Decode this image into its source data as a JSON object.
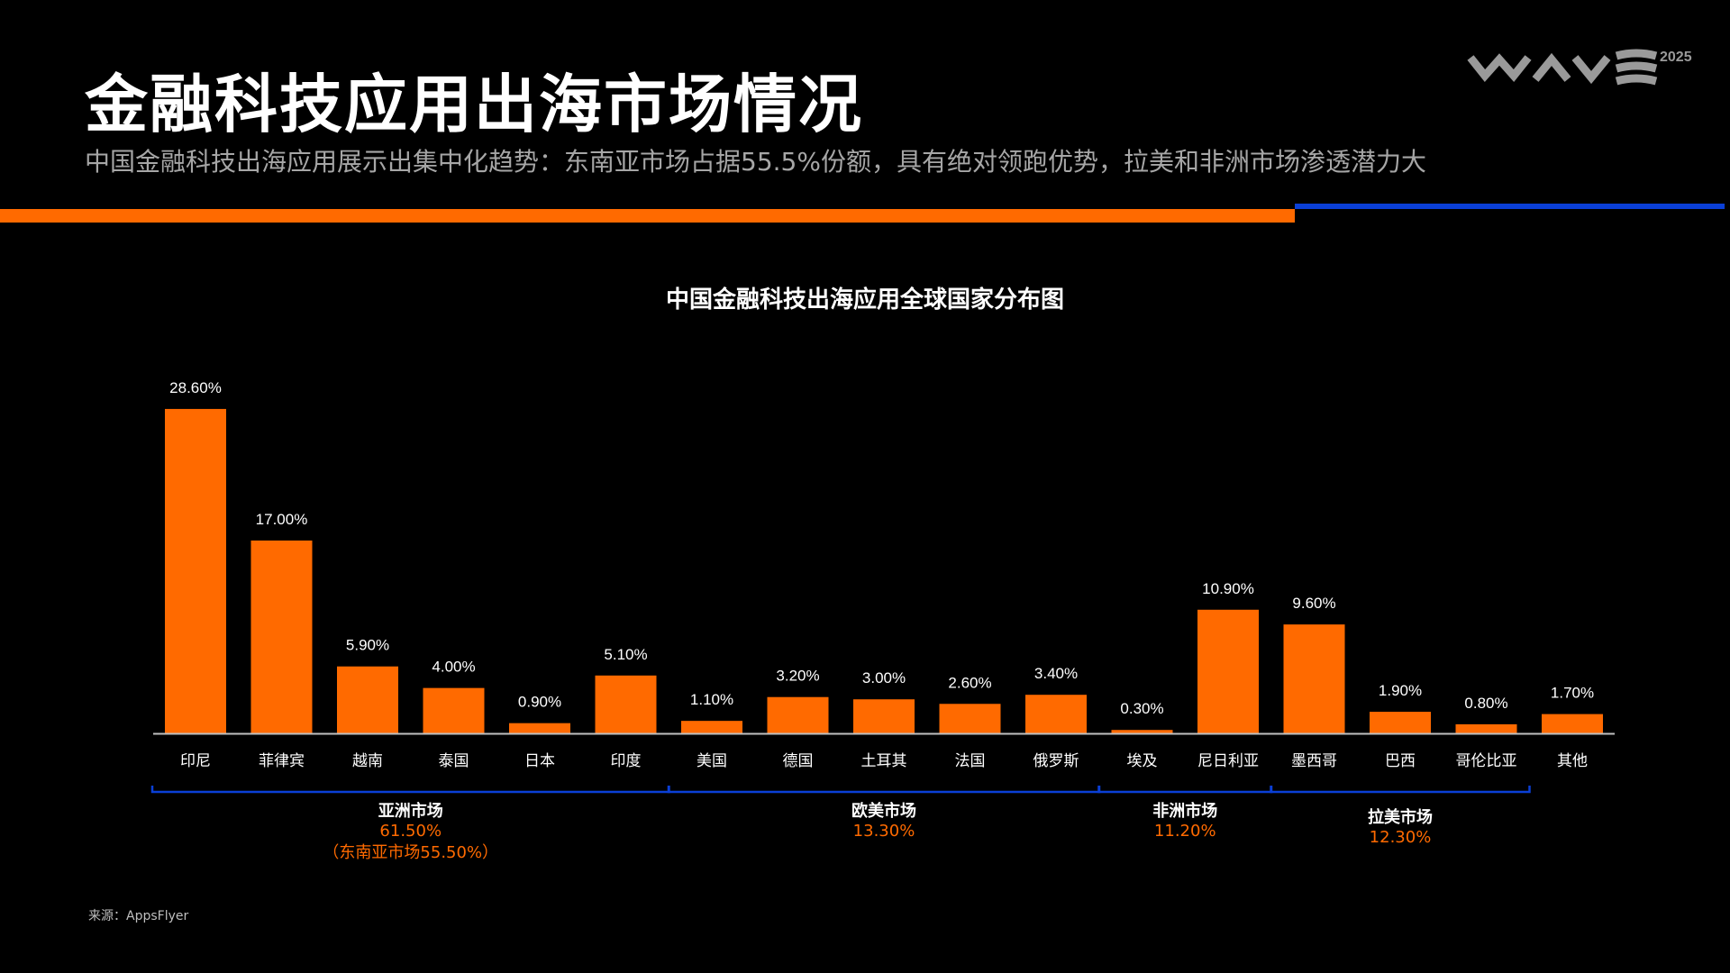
{
  "header": {
    "title": "金融科技应用出海市场情况",
    "subtitle": "中国金融科技出海应用展示出集中化趋势：东南亚市场占据55.5%份额，具有绝对领跑优势，拉美和非洲市场渗透潜力大",
    "logo_text": "WAVE",
    "logo_year": "2025"
  },
  "colors": {
    "bar": "#ff6a00",
    "accent_blue": "#0a3fd6",
    "group_value": "#ff6a00"
  },
  "chart_data": {
    "type": "bar",
    "title": "中国金融科技出海应用全球国家分布图",
    "categories": [
      "印尼",
      "菲律宾",
      "越南",
      "泰国",
      "日本",
      "印度",
      "美国",
      "德国",
      "土耳其",
      "法国",
      "俄罗斯",
      "埃及",
      "尼日利亚",
      "墨西哥",
      "巴西",
      "哥伦比亚",
      "其他"
    ],
    "values": [
      28.6,
      17.0,
      5.9,
      4.0,
      0.9,
      5.1,
      1.1,
      3.2,
      3.0,
      2.6,
      3.4,
      0.3,
      10.9,
      9.6,
      1.9,
      0.8,
      1.7
    ],
    "labels": [
      "28.60%",
      "17.00%",
      "5.90%",
      "4.00%",
      "0.90%",
      "5.10%",
      "1.10%",
      "3.20%",
      "3.00%",
      "2.60%",
      "3.40%",
      "0.30%",
      "10.90%",
      "9.60%",
      "1.90%",
      "0.80%",
      "1.70%"
    ],
    "ylim": [
      0,
      30
    ],
    "unit": "%",
    "grid": false,
    "groups": [
      {
        "name": "亚洲市场",
        "value": "61.50%",
        "note": "（东南亚市场55.50%）",
        "from": 0,
        "to": 5
      },
      {
        "name": "欧美市场",
        "value": "13.30%",
        "from": 6,
        "to": 10
      },
      {
        "name": "非洲市场",
        "value": "11.20%",
        "from": 11,
        "to": 12
      },
      {
        "name": "拉美市场",
        "value": "12.30%",
        "from": 13,
        "to": 15
      }
    ]
  },
  "footer": {
    "source": "来源：AppsFlyer"
  }
}
